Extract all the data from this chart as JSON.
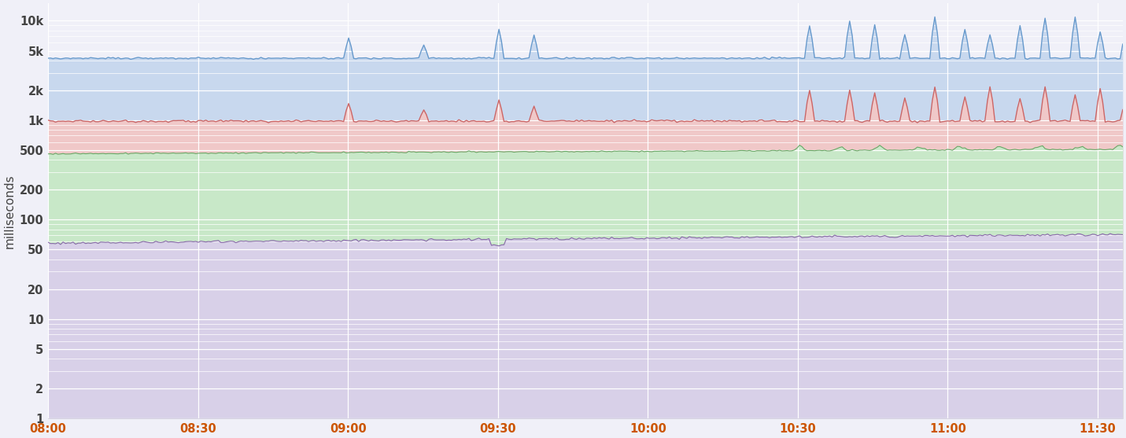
{
  "title": "",
  "ylabel": "milliseconds",
  "background_color": "#f0f0f8",
  "plot_bg_color": "#f0f0f8",
  "grid_color": "#ffffff",
  "yticks": [
    1,
    2,
    5,
    10,
    20,
    50,
    100,
    200,
    500,
    1000,
    2000,
    5000,
    10000
  ],
  "ytick_labels": [
    "1",
    "2",
    "5",
    "10",
    "20",
    "50",
    "100",
    "200",
    "500",
    "1k",
    "2k",
    "5k",
    "10k"
  ],
  "ylim": [
    1,
    15000
  ],
  "xlim_start": 0,
  "xlim_end": 215,
  "xtick_positions": [
    0,
    30,
    60,
    90,
    120,
    150,
    180,
    210
  ],
  "xtick_labels": [
    "08:00",
    "08:30",
    "09:00",
    "09:30",
    "10:00",
    "10:30",
    "11:00",
    "11:30"
  ],
  "line_colors": {
    "p99": "#6699cc",
    "p95": "#cc6666",
    "p85": "#66aa66",
    "p50": "#8866aa"
  },
  "fill_colors": {
    "p99": "#c8d8ee",
    "p95": "#f0c8c8",
    "p85": "#c8e8c8",
    "p50": "#d8d0e8"
  },
  "line_widths": {
    "p99": 1.0,
    "p95": 1.0,
    "p85": 0.8,
    "p50": 0.8
  },
  "figsize": [
    14.31,
    5.57
  ],
  "dpi": 100,
  "n_points": 430,
  "p99_base": 4200,
  "p95_base": 980,
  "p85_base": 460,
  "p50_base": 58
}
